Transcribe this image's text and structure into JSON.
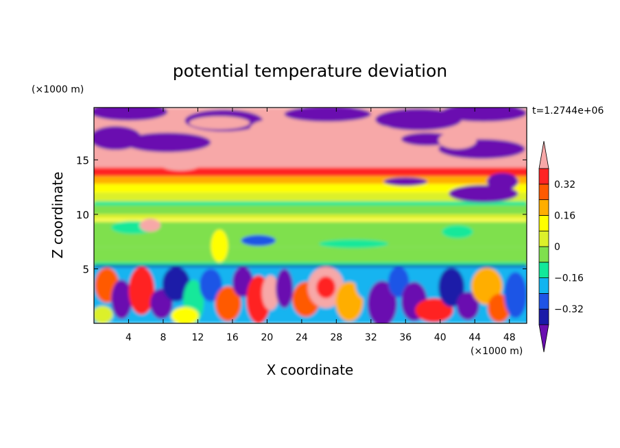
{
  "chart_data": {
    "type": "heatmap",
    "title": "potential temperature deviation",
    "xlabel": "X coordinate",
    "ylabel": "Z coordinate",
    "x_unit": "(×1000 m)",
    "y_unit": "(×1000 m)",
    "time_label": "t=1.2744e+06",
    "xlim": [
      0,
      50
    ],
    "ylim": [
      0,
      19.8
    ],
    "xticks": [
      "4",
      "8",
      "12",
      "16",
      "20",
      "24",
      "28",
      "32",
      "36",
      "40",
      "44",
      "48"
    ],
    "yticks": [
      "5",
      "10",
      "15"
    ],
    "colorbar": {
      "labels": [
        "0.32",
        "0.16",
        "0",
        "−0.16",
        "−0.32"
      ],
      "levels": [
        -0.4,
        -0.32,
        -0.24,
        -0.16,
        -0.08,
        0,
        0.08,
        0.16,
        0.24,
        0.32,
        0.4
      ],
      "colors": [
        "#6a0fb0",
        "#1a1aa8",
        "#1f54e6",
        "#12b4f0",
        "#13e89a",
        "#7fe04d",
        "#dcf02a",
        "#ffff00",
        "#ffae00",
        "#ff5a00",
        "#ff2424",
        "#f7a8a8"
      ]
    }
  }
}
